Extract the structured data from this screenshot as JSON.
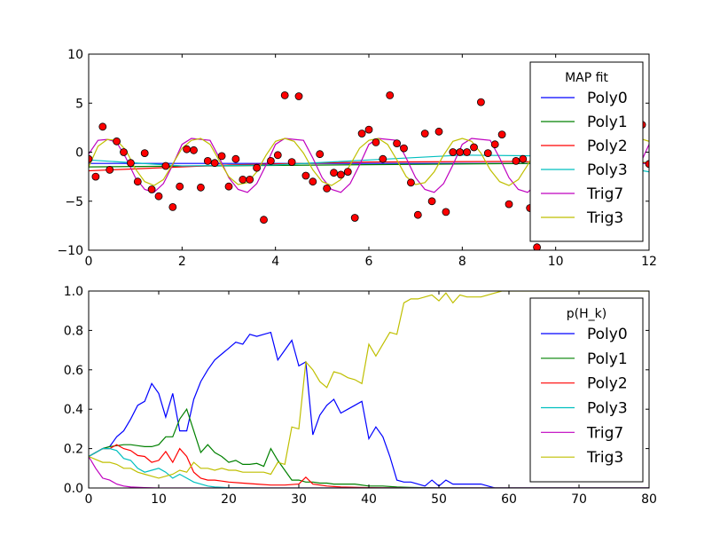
{
  "chart_data": [
    {
      "type": "line",
      "xlim": [
        0,
        12
      ],
      "ylim": [
        -10,
        10
      ],
      "xticks": [
        "0",
        "2",
        "4",
        "6",
        "8",
        "10",
        "12"
      ],
      "yticks": [
        "10",
        "5",
        "0",
        "−5",
        "−10"
      ],
      "grid": false,
      "legend": {
        "title": "MAP fit",
        "placement": "top-right",
        "entries": [
          "Poly0",
          "Poly1",
          "Poly2",
          "Poly3",
          "Trig7",
          "Trig3"
        ]
      },
      "scatter": {
        "color": "#ff0000",
        "points": [
          [
            0.0,
            -0.7
          ],
          [
            0.15,
            -2.5
          ],
          [
            0.3,
            2.6
          ],
          [
            0.45,
            -1.8
          ],
          [
            0.6,
            1.1
          ],
          [
            0.75,
            0.0
          ],
          [
            0.9,
            -1.1
          ],
          [
            1.05,
            -3.0
          ],
          [
            1.2,
            -0.1
          ],
          [
            1.35,
            -3.8
          ],
          [
            1.5,
            -4.5
          ],
          [
            1.65,
            -1.4
          ],
          [
            1.8,
            -5.6
          ],
          [
            1.95,
            -3.5
          ],
          [
            2.1,
            0.3
          ],
          [
            2.25,
            0.2
          ],
          [
            2.4,
            -3.6
          ],
          [
            2.55,
            -0.9
          ],
          [
            2.7,
            -1.1
          ],
          [
            2.85,
            -0.4
          ],
          [
            3.0,
            -3.5
          ],
          [
            3.15,
            -0.7
          ],
          [
            3.3,
            -2.8
          ],
          [
            3.45,
            -2.8
          ],
          [
            3.6,
            -1.6
          ],
          [
            3.75,
            -6.9
          ],
          [
            3.9,
            -0.9
          ],
          [
            4.05,
            -0.3
          ],
          [
            4.2,
            5.8
          ],
          [
            4.35,
            -1.0
          ],
          [
            4.5,
            5.7
          ],
          [
            4.65,
            -2.4
          ],
          [
            4.8,
            -3.0
          ],
          [
            4.95,
            -0.2
          ],
          [
            5.1,
            -3.7
          ],
          [
            5.25,
            -2.1
          ],
          [
            5.4,
            -2.3
          ],
          [
            5.55,
            -2.0
          ],
          [
            5.7,
            -6.7
          ],
          [
            5.85,
            1.9
          ],
          [
            6.0,
            2.3
          ],
          [
            6.15,
            1.0
          ],
          [
            6.3,
            -0.7
          ],
          [
            6.45,
            5.8
          ],
          [
            6.6,
            0.9
          ],
          [
            6.75,
            0.4
          ],
          [
            6.9,
            -3.1
          ],
          [
            7.05,
            -6.4
          ],
          [
            7.2,
            1.9
          ],
          [
            7.35,
            -5.0
          ],
          [
            7.5,
            2.1
          ],
          [
            7.65,
            -6.1
          ],
          [
            7.8,
            0.0
          ],
          [
            7.95,
            0.0
          ],
          [
            8.1,
            0.0
          ],
          [
            8.25,
            0.5
          ],
          [
            8.4,
            5.1
          ],
          [
            8.55,
            -0.1
          ],
          [
            8.7,
            0.8
          ],
          [
            8.85,
            1.8
          ],
          [
            9.0,
            -5.3
          ],
          [
            9.15,
            -0.9
          ],
          [
            9.3,
            -0.7
          ],
          [
            9.45,
            -5.7
          ],
          [
            9.6,
            -9.7
          ],
          [
            11.85,
            2.8
          ],
          [
            12.0,
            -1.2
          ]
        ]
      },
      "series": [
        {
          "name": "Poly0",
          "color": "#0000ff",
          "x": [
            0,
            12
          ],
          "y": [
            -1.15,
            -1.15
          ]
        },
        {
          "name": "Poly1",
          "color": "#008000",
          "x": [
            0,
            12
          ],
          "y": [
            -1.5,
            -1.05
          ]
        },
        {
          "name": "Poly2",
          "color": "#ff0000",
          "x": [
            0,
            3,
            6,
            9,
            12
          ],
          "y": [
            -1.9,
            -1.3,
            -1.0,
            -0.95,
            -1.1
          ]
        },
        {
          "name": "Poly3",
          "color": "#00bfbf",
          "x": [
            0,
            2,
            4,
            6,
            8,
            10,
            12
          ],
          "y": [
            -0.8,
            -1.4,
            -1.3,
            -0.8,
            -0.3,
            -0.4,
            -2.0
          ]
        },
        {
          "name": "Trig7",
          "color": "#bf00bf",
          "x": [
            0,
            0.2,
            0.4,
            0.6,
            0.8,
            1.0,
            1.2,
            1.4,
            1.6,
            1.8,
            2.0,
            2.2,
            2.4,
            2.6,
            2.8,
            3.0,
            3.2,
            3.4,
            3.6,
            3.8,
            4.0,
            4.2,
            4.4,
            4.6,
            4.8,
            5.0,
            5.2,
            5.4,
            5.6,
            5.8,
            6.0,
            6.2,
            6.4,
            6.6,
            6.8,
            7.0,
            7.2,
            7.4,
            7.6,
            7.8,
            8.0,
            8.2,
            8.4,
            8.6,
            8.8,
            9.0,
            9.2,
            9.4,
            9.6,
            9.8,
            10.0,
            10.2,
            10.4,
            10.6,
            10.8,
            11.0,
            11.2,
            11.4,
            11.6,
            11.8,
            12.0
          ],
          "y": [
            -0.2,
            1.2,
            1.3,
            1.0,
            -0.6,
            -2.6,
            -3.8,
            -4.1,
            -3.2,
            -1.3,
            0.8,
            1.4,
            1.3,
            1.2,
            -0.6,
            -2.6,
            -3.8,
            -4.1,
            -3.2,
            -1.3,
            0.8,
            1.4,
            1.3,
            1.2,
            -0.6,
            -2.6,
            -3.8,
            -4.1,
            -3.2,
            -1.3,
            0.8,
            1.4,
            1.3,
            1.2,
            -0.6,
            -2.6,
            -3.8,
            -4.1,
            -3.2,
            -1.3,
            0.8,
            1.4,
            1.3,
            1.2,
            -0.6,
            -2.6,
            -3.8,
            -4.1,
            -3.2,
            -1.3,
            0.8,
            1.4,
            1.3,
            1.2,
            -0.6,
            -2.6,
            -3.8,
            -4.1,
            -3.2,
            -1.3,
            0.8
          ]
        },
        {
          "name": "Trig3",
          "color": "#bfbf00",
          "x": [
            0,
            0.2,
            0.4,
            0.6,
            0.8,
            1.0,
            1.2,
            1.4,
            1.6,
            1.8,
            2.0,
            2.2,
            2.4,
            2.6,
            2.8,
            3.0,
            3.2,
            3.4,
            3.6,
            3.8,
            4.0,
            4.2,
            4.4,
            4.6,
            4.8,
            5.0,
            5.2,
            5.4,
            5.6,
            5.8,
            6.0,
            6.2,
            6.4,
            6.6,
            6.8,
            7.0,
            7.2,
            7.4,
            7.6,
            7.8,
            8.0,
            8.2,
            8.4,
            8.6,
            8.8,
            9.0,
            9.2,
            9.4,
            9.6,
            9.8,
            10.0,
            10.2,
            10.4,
            10.6,
            10.8,
            11.0,
            11.2,
            11.4,
            11.6,
            11.8,
            12.0
          ],
          "y": [
            -1.5,
            0.6,
            1.3,
            1.2,
            0.2,
            -1.7,
            -3.0,
            -3.4,
            -2.8,
            -1.2,
            0.4,
            1.2,
            1.4,
            0.8,
            -0.9,
            -2.5,
            -3.3,
            -3.1,
            -2.0,
            -0.3,
            1.1,
            1.4,
            1.1,
            -0.1,
            -1.8,
            -3.0,
            -3.4,
            -2.8,
            -1.3,
            0.4,
            1.2,
            1.4,
            0.8,
            -0.8,
            -2.5,
            -3.3,
            -3.1,
            -2.0,
            -0.3,
            1.1,
            1.4,
            1.1,
            -0.1,
            -1.8,
            -3.0,
            -3.4,
            -2.8,
            -1.3,
            0.4,
            1.2,
            1.4,
            0.8,
            -0.8,
            -2.5,
            -3.3,
            -3.1,
            -2.0,
            -0.3,
            1.1,
            1.4,
            1.1
          ]
        }
      ]
    },
    {
      "type": "line",
      "xlim": [
        0,
        80
      ],
      "ylim": [
        0,
        1
      ],
      "xticks": [
        "0",
        "10",
        "20",
        "30",
        "40",
        "50",
        "60",
        "70",
        "80"
      ],
      "yticks": [
        "1.0",
        "0.8",
        "0.6",
        "0.4",
        "0.2",
        "0.0"
      ],
      "grid": false,
      "legend": {
        "title": "p(H_k)",
        "placement": "top-right",
        "entries": [
          "Poly0",
          "Poly1",
          "Poly2",
          "Poly3",
          "Trig7",
          "Trig3"
        ]
      },
      "series": [
        {
          "name": "Poly0",
          "color": "#0000ff",
          "x": [
            0,
            2,
            3,
            4,
            5,
            6,
            7,
            8,
            9,
            10,
            11,
            12,
            13,
            14,
            15,
            16,
            17,
            18,
            19,
            20,
            21,
            22,
            23,
            24,
            25,
            26,
            27,
            28,
            29,
            30,
            31,
            32,
            33,
            34,
            35,
            36,
            37,
            38,
            39,
            40,
            41,
            42,
            43,
            44,
            45,
            46,
            47,
            48,
            49,
            50,
            51,
            52,
            53,
            54,
            55,
            56,
            57,
            58,
            60,
            65,
            70,
            75,
            80
          ],
          "y": [
            0.16,
            0.2,
            0.21,
            0.26,
            0.29,
            0.35,
            0.42,
            0.44,
            0.53,
            0.48,
            0.36,
            0.48,
            0.29,
            0.29,
            0.45,
            0.54,
            0.6,
            0.65,
            0.68,
            0.71,
            0.74,
            0.73,
            0.78,
            0.77,
            0.78,
            0.79,
            0.65,
            0.7,
            0.75,
            0.62,
            0.64,
            0.27,
            0.37,
            0.42,
            0.45,
            0.38,
            0.4,
            0.42,
            0.44,
            0.25,
            0.31,
            0.26,
            0.16,
            0.04,
            0.03,
            0.03,
            0.02,
            0.01,
            0.04,
            0.01,
            0.04,
            0.02,
            0.02,
            0.02,
            0.02,
            0.02,
            0.01,
            0.0,
            0.0,
            0.0,
            0.0,
            0.0,
            0.0
          ]
        },
        {
          "name": "Poly1",
          "color": "#008000",
          "x": [
            0,
            2,
            3,
            4,
            5,
            6,
            7,
            8,
            9,
            10,
            11,
            12,
            13,
            14,
            15,
            16,
            17,
            18,
            19,
            20,
            21,
            22,
            23,
            24,
            25,
            26,
            27,
            28,
            29,
            30,
            31,
            32,
            33,
            34,
            35,
            36,
            38,
            40,
            42,
            44,
            46,
            48,
            50,
            55,
            60,
            70,
            80
          ],
          "y": [
            0.16,
            0.2,
            0.21,
            0.215,
            0.22,
            0.22,
            0.215,
            0.21,
            0.21,
            0.22,
            0.26,
            0.26,
            0.35,
            0.4,
            0.29,
            0.18,
            0.22,
            0.18,
            0.16,
            0.13,
            0.14,
            0.12,
            0.12,
            0.125,
            0.11,
            0.2,
            0.14,
            0.09,
            0.04,
            0.04,
            0.03,
            0.03,
            0.025,
            0.025,
            0.02,
            0.02,
            0.02,
            0.01,
            0.01,
            0.005,
            0.003,
            0.002,
            0.001,
            0.0,
            0.0,
            0.0,
            0.0
          ]
        },
        {
          "name": "Poly2",
          "color": "#ff0000",
          "x": [
            0,
            2,
            3,
            4,
            5,
            6,
            7,
            8,
            9,
            10,
            11,
            12,
            13,
            14,
            15,
            16,
            17,
            18,
            19,
            20,
            22,
            24,
            26,
            28,
            30,
            31,
            32,
            34,
            36,
            40,
            45,
            50,
            60,
            70,
            80
          ],
          "y": [
            0.16,
            0.2,
            0.2,
            0.22,
            0.2,
            0.19,
            0.165,
            0.16,
            0.13,
            0.14,
            0.185,
            0.13,
            0.2,
            0.16,
            0.08,
            0.05,
            0.04,
            0.04,
            0.035,
            0.03,
            0.025,
            0.02,
            0.015,
            0.015,
            0.02,
            0.055,
            0.02,
            0.01,
            0.005,
            0.002,
            0.0,
            0.0,
            0.0,
            0.0,
            0.0
          ]
        },
        {
          "name": "Poly3",
          "color": "#00bfbf",
          "x": [
            0,
            2,
            3,
            4,
            5,
            6,
            7,
            8,
            9,
            10,
            11,
            12,
            13,
            14,
            15,
            16,
            17,
            18,
            20,
            25,
            30,
            40,
            80
          ],
          "y": [
            0.16,
            0.2,
            0.2,
            0.19,
            0.15,
            0.14,
            0.1,
            0.08,
            0.09,
            0.1,
            0.08,
            0.05,
            0.07,
            0.05,
            0.03,
            0.02,
            0.01,
            0.005,
            0.002,
            0.0,
            0.0,
            0.0,
            0.0
          ]
        },
        {
          "name": "Trig7",
          "color": "#bf00bf",
          "x": [
            0,
            1,
            2,
            3,
            4,
            5,
            6,
            8,
            10,
            15,
            80
          ],
          "y": [
            0.16,
            0.1,
            0.05,
            0.04,
            0.02,
            0.01,
            0.005,
            0.002,
            0.0,
            0.0,
            0.0
          ]
        },
        {
          "name": "Trig3",
          "color": "#bfbf00",
          "x": [
            0,
            2,
            3,
            4,
            5,
            6,
            7,
            8,
            9,
            10,
            11,
            12,
            13,
            14,
            15,
            16,
            17,
            18,
            19,
            20,
            21,
            22,
            23,
            24,
            25,
            26,
            27,
            28,
            29,
            30,
            31,
            32,
            33,
            34,
            35,
            36,
            37,
            38,
            39,
            40,
            41,
            42,
            43,
            44,
            45,
            46,
            47,
            48,
            49,
            50,
            51,
            52,
            53,
            54,
            55,
            56,
            57,
            58,
            59,
            60,
            65,
            70,
            75,
            80
          ],
          "y": [
            0.16,
            0.13,
            0.13,
            0.12,
            0.1,
            0.1,
            0.08,
            0.07,
            0.06,
            0.05,
            0.06,
            0.07,
            0.09,
            0.08,
            0.13,
            0.1,
            0.1,
            0.09,
            0.1,
            0.09,
            0.09,
            0.08,
            0.08,
            0.08,
            0.08,
            0.07,
            0.13,
            0.12,
            0.31,
            0.3,
            0.64,
            0.6,
            0.54,
            0.51,
            0.59,
            0.58,
            0.56,
            0.55,
            0.53,
            0.73,
            0.67,
            0.73,
            0.79,
            0.78,
            0.94,
            0.96,
            0.96,
            0.97,
            0.98,
            0.95,
            0.99,
            0.94,
            0.98,
            0.97,
            0.97,
            0.97,
            0.98,
            0.99,
            1.0,
            1.0,
            1.0,
            1.0,
            1.0,
            1.0
          ]
        }
      ]
    }
  ]
}
